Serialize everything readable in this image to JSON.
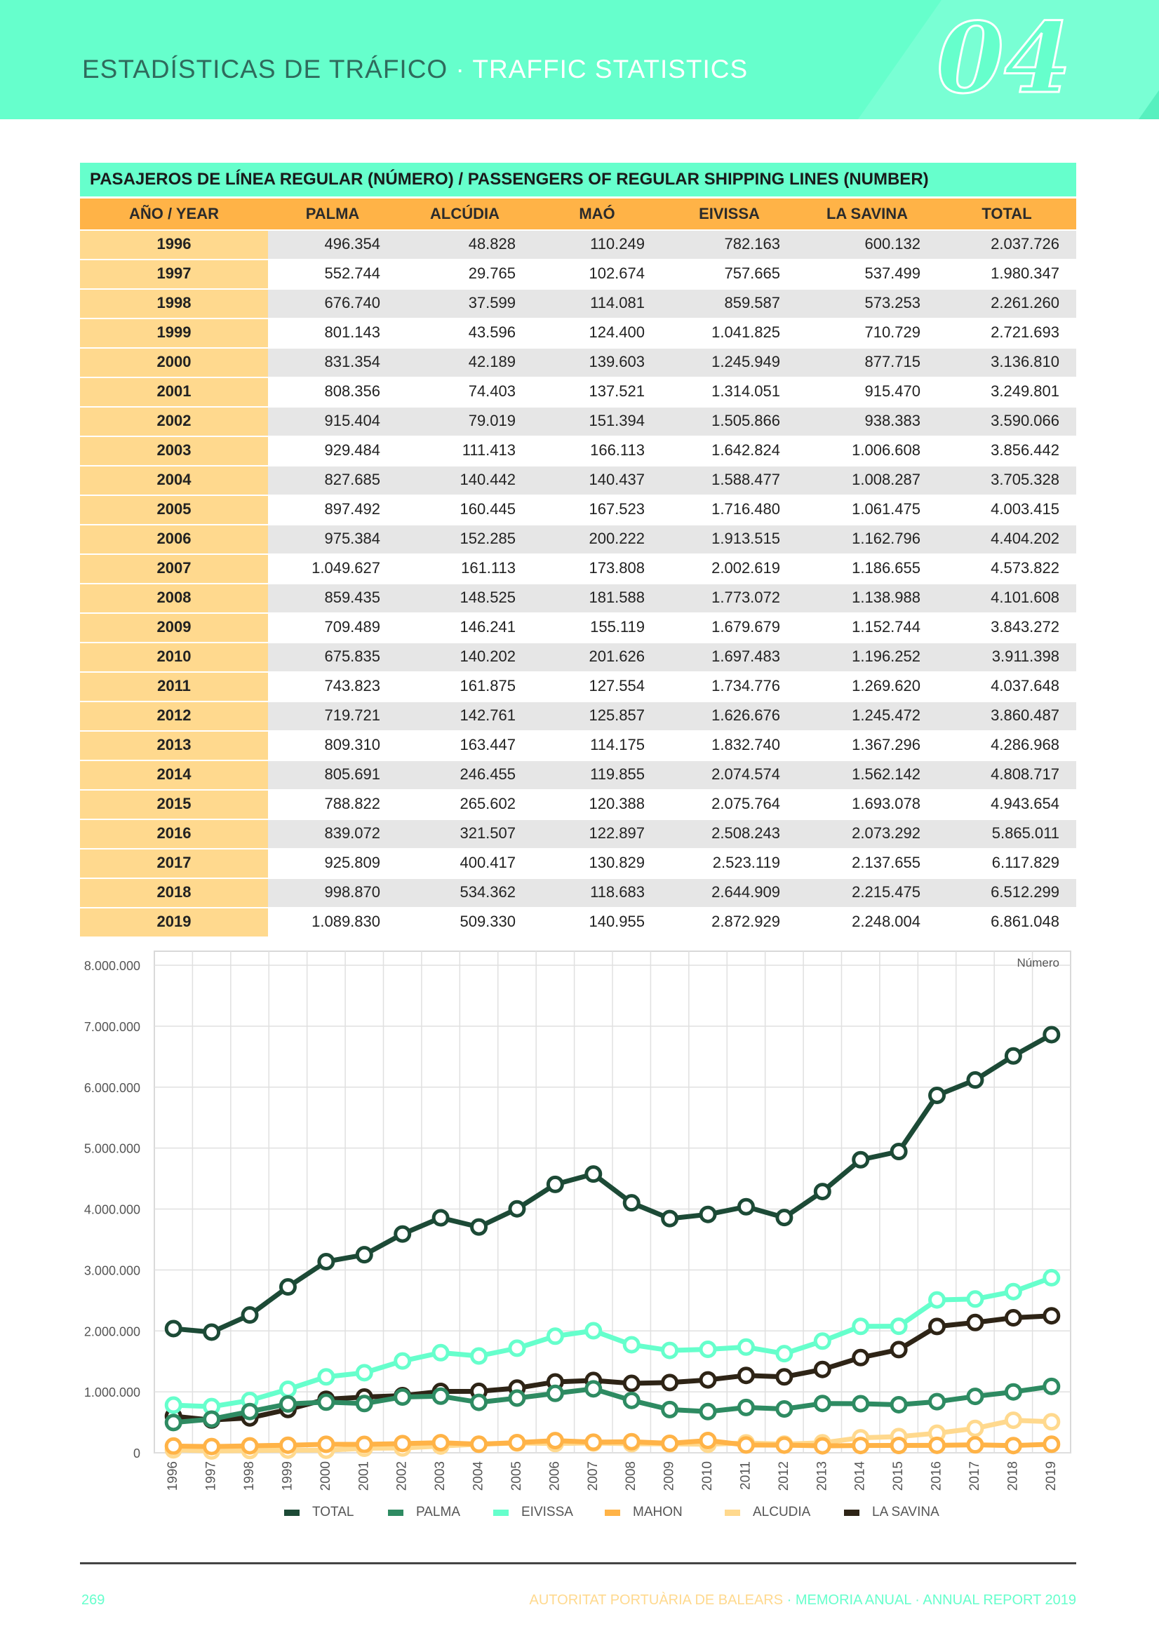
{
  "header": {
    "title_es": "ESTADÍSTICAS DE TRÁFICO",
    "separator": " · ",
    "title_en": "TRAFFIC STATISTICS",
    "chapter": "04"
  },
  "table": {
    "title": "PASAJEROS DE LÍNEA REGULAR (NÚMERO) / PASSENGERS OF REGULAR SHIPPING LINES (NUMBER)",
    "headers": [
      "AÑO / YEAR",
      "PALMA",
      "ALCÚDIA",
      "MAÓ",
      "EIVISSA",
      "LA SAVINA",
      "TOTAL"
    ],
    "rows": [
      [
        "1996",
        "496.354",
        "48.828",
        "110.249",
        "782.163",
        "600.132",
        "2.037.726"
      ],
      [
        "1997",
        "552.744",
        "29.765",
        "102.674",
        "757.665",
        "537.499",
        "1.980.347"
      ],
      [
        "1998",
        "676.740",
        "37.599",
        "114.081",
        "859.587",
        "573.253",
        "2.261.260"
      ],
      [
        "1999",
        "801.143",
        "43.596",
        "124.400",
        "1.041.825",
        "710.729",
        "2.721.693"
      ],
      [
        "2000",
        "831.354",
        "42.189",
        "139.603",
        "1.245.949",
        "877.715",
        "3.136.810"
      ],
      [
        "2001",
        "808.356",
        "74.403",
        "137.521",
        "1.314.051",
        "915.470",
        "3.249.801"
      ],
      [
        "2002",
        "915.404",
        "79.019",
        "151.394",
        "1.505.866",
        "938.383",
        "3.590.066"
      ],
      [
        "2003",
        "929.484",
        "111.413",
        "166.113",
        "1.642.824",
        "1.006.608",
        "3.856.442"
      ],
      [
        "2004",
        "827.685",
        "140.442",
        "140.437",
        "1.588.477",
        "1.008.287",
        "3.705.328"
      ],
      [
        "2005",
        "897.492",
        "160.445",
        "167.523",
        "1.716.480",
        "1.061.475",
        "4.003.415"
      ],
      [
        "2006",
        "975.384",
        "152.285",
        "200.222",
        "1.913.515",
        "1.162.796",
        "4.404.202"
      ],
      [
        "2007",
        "1.049.627",
        "161.113",
        "173.808",
        "2.002.619",
        "1.186.655",
        "4.573.822"
      ],
      [
        "2008",
        "859.435",
        "148.525",
        "181.588",
        "1.773.072",
        "1.138.988",
        "4.101.608"
      ],
      [
        "2009",
        "709.489",
        "146.241",
        "155.119",
        "1.679.679",
        "1.152.744",
        "3.843.272"
      ],
      [
        "2010",
        "675.835",
        "140.202",
        "201.626",
        "1.697.483",
        "1.196.252",
        "3.911.398"
      ],
      [
        "2011",
        "743.823",
        "161.875",
        "127.554",
        "1.734.776",
        "1.269.620",
        "4.037.648"
      ],
      [
        "2012",
        "719.721",
        "142.761",
        "125.857",
        "1.626.676",
        "1.245.472",
        "3.860.487"
      ],
      [
        "2013",
        "809.310",
        "163.447",
        "114.175",
        "1.832.740",
        "1.367.296",
        "4.286.968"
      ],
      [
        "2014",
        "805.691",
        "246.455",
        "119.855",
        "2.074.574",
        "1.562.142",
        "4.808.717"
      ],
      [
        "2015",
        "788.822",
        "265.602",
        "120.388",
        "2.075.764",
        "1.693.078",
        "4.943.654"
      ],
      [
        "2016",
        "839.072",
        "321.507",
        "122.897",
        "2.508.243",
        "2.073.292",
        "5.865.011"
      ],
      [
        "2017",
        "925.809",
        "400.417",
        "130.829",
        "2.523.119",
        "2.137.655",
        "6.117.829"
      ],
      [
        "2018",
        "998.870",
        "534.362",
        "118.683",
        "2.644.909",
        "2.215.475",
        "6.512.299"
      ],
      [
        "2019",
        "1.089.830",
        "509.330",
        "140.955",
        "2.872.929",
        "2.248.004",
        "6.861.048"
      ]
    ]
  },
  "chart_data": {
    "type": "line",
    "unit_label": "Número",
    "x": [
      "1996",
      "1997",
      "1998",
      "1999",
      "2000",
      "2001",
      "2002",
      "2003",
      "2004",
      "2005",
      "2006",
      "2007",
      "2008",
      "2009",
      "2010",
      "2011",
      "2012",
      "2013",
      "2014",
      "2015",
      "2016",
      "2017",
      "2018",
      "2019"
    ],
    "ylim": [
      0,
      8000000
    ],
    "yticks": [
      0,
      1000000,
      2000000,
      3000000,
      4000000,
      5000000,
      6000000,
      7000000,
      8000000
    ],
    "ytick_labels": [
      "0",
      "1.000.000",
      "2.000.000",
      "3.000.000",
      "4.000.000",
      "5.000.000",
      "6.000.000",
      "7.000.000",
      "8.000.000"
    ],
    "grid": true,
    "legend_position": "bottom",
    "series": [
      {
        "name": "TOTAL",
        "color": "#1c4a36",
        "values": [
          2037726,
          1980347,
          2261260,
          2721693,
          3136810,
          3249801,
          3590066,
          3856442,
          3705328,
          4003415,
          4404202,
          4573822,
          4101608,
          3843272,
          3911398,
          4037648,
          3860487,
          4286968,
          4808717,
          4943654,
          5865011,
          6117829,
          6512299,
          6861048
        ]
      },
      {
        "name": "PALMA",
        "color": "#2e8b62",
        "values": [
          496354,
          552744,
          676740,
          801143,
          831354,
          808356,
          915404,
          929484,
          827685,
          897492,
          975384,
          1049627,
          859435,
          709489,
          675835,
          743823,
          719721,
          809310,
          805691,
          788822,
          839072,
          925809,
          998870,
          1089830
        ]
      },
      {
        "name": "EIVISSA",
        "color": "#66ffcc",
        "values": [
          782163,
          757665,
          859587,
          1041825,
          1245949,
          1314051,
          1505866,
          1642824,
          1588477,
          1716480,
          1913515,
          2002619,
          1773072,
          1679679,
          1697483,
          1734776,
          1626676,
          1832740,
          2074574,
          2075764,
          2508243,
          2523119,
          2644909,
          2872929
        ]
      },
      {
        "name": "MAHON",
        "color": "#ffb347",
        "values": [
          110249,
          102674,
          114081,
          124400,
          139603,
          137521,
          151394,
          166113,
          140437,
          167523,
          200222,
          173808,
          181588,
          155119,
          201626,
          127554,
          125857,
          114175,
          119855,
          120388,
          122897,
          130829,
          118683,
          140955
        ]
      },
      {
        "name": "ALCUDIA",
        "color": "#ffd98e",
        "values": [
          48828,
          29765,
          37599,
          43596,
          42189,
          74403,
          79019,
          111413,
          140442,
          160445,
          152285,
          161113,
          148525,
          146241,
          140202,
          161875,
          142761,
          163447,
          246455,
          265602,
          321507,
          400417,
          534362,
          509330
        ]
      },
      {
        "name": "LA SAVINA",
        "color": "#2e2416",
        "values": [
          600132,
          537499,
          573253,
          710729,
          877715,
          915470,
          938383,
          1006608,
          1008287,
          1061475,
          1162796,
          1186655,
          1138988,
          1152744,
          1196252,
          1269620,
          1245472,
          1367296,
          1562142,
          1693078,
          2073292,
          2137655,
          2215475,
          2248004
        ]
      }
    ]
  },
  "footer": {
    "page": "269",
    "org": "AUTORITAT PORTUÀRIA DE BALEARS",
    "separator": " · ",
    "report": "MEMORIA ANUAL · ANNUAL REPORT 2019"
  }
}
